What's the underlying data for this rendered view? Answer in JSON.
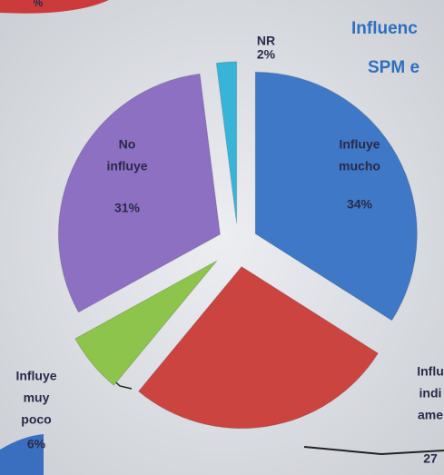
{
  "chart_data": {
    "type": "pie",
    "title_fragments": [
      "Influenc",
      "SPM e"
    ],
    "corner_fragment": "%",
    "labels": [
      [
        "NR"
      ],
      [
        "Influye",
        "mucho"
      ],
      [
        "Influ",
        "indi",
        "ame"
      ],
      [
        "Influye",
        "muy",
        "poco"
      ],
      [
        "No",
        "influye"
      ]
    ],
    "values": [
      2,
      34,
      27,
      6,
      31
    ],
    "value_labels": [
      "2%",
      "34%",
      "27",
      "6%",
      "31%"
    ],
    "colors": [
      "#38b4d8",
      "#3f78c6",
      "#cc4440",
      "#8dc44c",
      "#8d70c2"
    ]
  }
}
